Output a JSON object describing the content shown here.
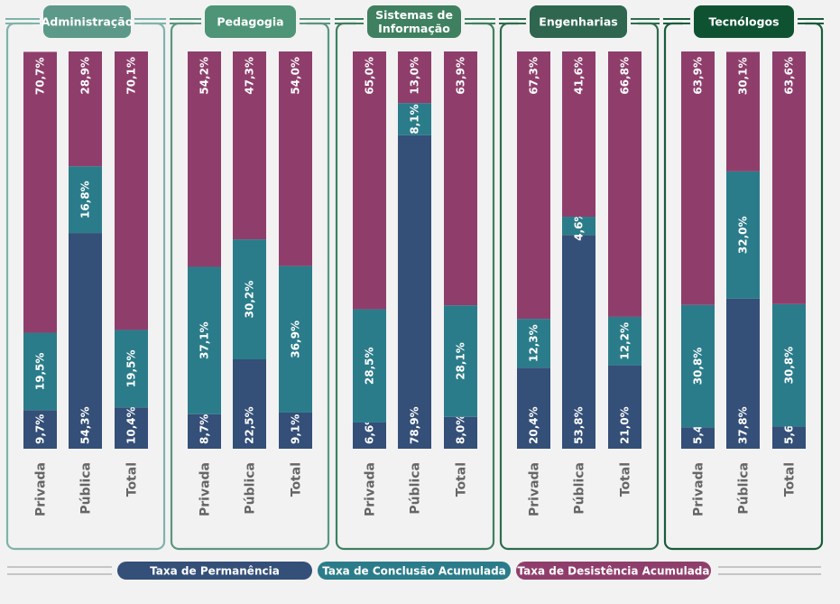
{
  "chart_data": {
    "type": "bar",
    "stacked": true,
    "percent_stacked": true,
    "ylim": [
      0,
      100
    ],
    "categories": [
      "Privada",
      "Pública",
      "Total"
    ],
    "series_order": [
      "Taxa de Permanência",
      "Taxa de Conclusão Acumulada",
      "Taxa de Desistência Acumulada"
    ],
    "colors": {
      "Taxa de Permanência": "#344f78",
      "Taxa de Conclusão Acumulada": "#2b7c8a",
      "Taxa de Desistência Acumulada": "#8f3e6c"
    },
    "panels": [
      {
        "title": [
          "Administração"
        ],
        "frame_color": "#7fb3a9",
        "header_color": "#5d9988",
        "bars": [
          {
            "category": "Privada",
            "values": [
              9.7,
              19.5,
              70.7
            ],
            "labels": [
              "9,7%",
              "19,5%",
              "70,7%"
            ]
          },
          {
            "category": "Pública",
            "values": [
              54.3,
              16.8,
              28.9
            ],
            "labels": [
              "54,3%",
              "16,8%",
              "28,9%"
            ]
          },
          {
            "category": "Total",
            "values": [
              10.4,
              19.5,
              70.1
            ],
            "labels": [
              "10,4%",
              "19,5%",
              "70,1%"
            ]
          }
        ]
      },
      {
        "title": [
          "Pedagogia"
        ],
        "frame_color": "#5b967f",
        "header_color": "#4e9477",
        "bars": [
          {
            "category": "Privada",
            "values": [
              8.7,
              37.1,
              54.2
            ],
            "labels": [
              "8,7%",
              "37,1%",
              "54,2%"
            ]
          },
          {
            "category": "Pública",
            "values": [
              22.5,
              30.2,
              47.3
            ],
            "labels": [
              "22,5%",
              "30,2%",
              "47,3%"
            ]
          },
          {
            "category": "Total",
            "values": [
              9.1,
              36.9,
              54.0
            ],
            "labels": [
              "9,1%",
              "36,9%",
              "54,0%"
            ]
          }
        ]
      },
      {
        "title": [
          "Sistemas de",
          "Informação"
        ],
        "frame_color": "#3f8060",
        "header_color": "#3f8060",
        "bars": [
          {
            "category": "Privada",
            "values": [
              6.6,
              28.5,
              65.0
            ],
            "labels": [
              "6,6%",
              "28,5%",
              "65,0%"
            ]
          },
          {
            "category": "Pública",
            "values": [
              78.9,
              8.1,
              13.0
            ],
            "labels": [
              "78,9%",
              "8,1%",
              "13,0%"
            ]
          },
          {
            "category": "Total",
            "values": [
              8.0,
              28.1,
              63.9
            ],
            "labels": [
              "8,0%",
              "28,1%",
              "63,9%"
            ]
          }
        ]
      },
      {
        "title": [
          "Engenharias"
        ],
        "frame_color": "#2e6d50",
        "header_color": "#2e6650",
        "bars": [
          {
            "category": "Privada",
            "values": [
              20.4,
              12.3,
              67.3
            ],
            "labels": [
              "20,4%",
              "12,3%",
              "67,3%"
            ]
          },
          {
            "category": "Pública",
            "values": [
              53.8,
              4.6,
              41.6
            ],
            "labels": [
              "53,8%",
              "4,6%",
              "41,6%"
            ]
          },
          {
            "category": "Total",
            "values": [
              21.0,
              12.2,
              66.8
            ],
            "labels": [
              "21,0%",
              "12,2%",
              "66,8%"
            ]
          }
        ]
      },
      {
        "title": [
          "Tecnólogos"
        ],
        "frame_color": "#175c3b",
        "header_color": "#0f5232",
        "bars": [
          {
            "category": "Privada",
            "values": [
              5.4,
              30.8,
              63.9
            ],
            "labels": [
              "5,4%",
              "30,8%",
              "63,9%"
            ]
          },
          {
            "category": "Pública",
            "values": [
              37.8,
              32.0,
              30.1
            ],
            "labels": [
              "37,8%",
              "32,0%",
              "30,1%"
            ]
          },
          {
            "category": "Total",
            "values": [
              5.6,
              30.8,
              63.6
            ],
            "labels": [
              "5,6%",
              "30,8%",
              "63,6%"
            ]
          }
        ]
      }
    ],
    "legend": {
      "placement": "bottom",
      "items": [
        {
          "label": "Taxa de Permanência",
          "color": "#344f78"
        },
        {
          "label": "Taxa de Conclusão Acumulada",
          "color": "#2b7c8a"
        },
        {
          "label": "Taxa de Desistência Acumulada",
          "color": "#8f3e6c"
        }
      ],
      "rule_color": "#aaaaaa"
    }
  }
}
